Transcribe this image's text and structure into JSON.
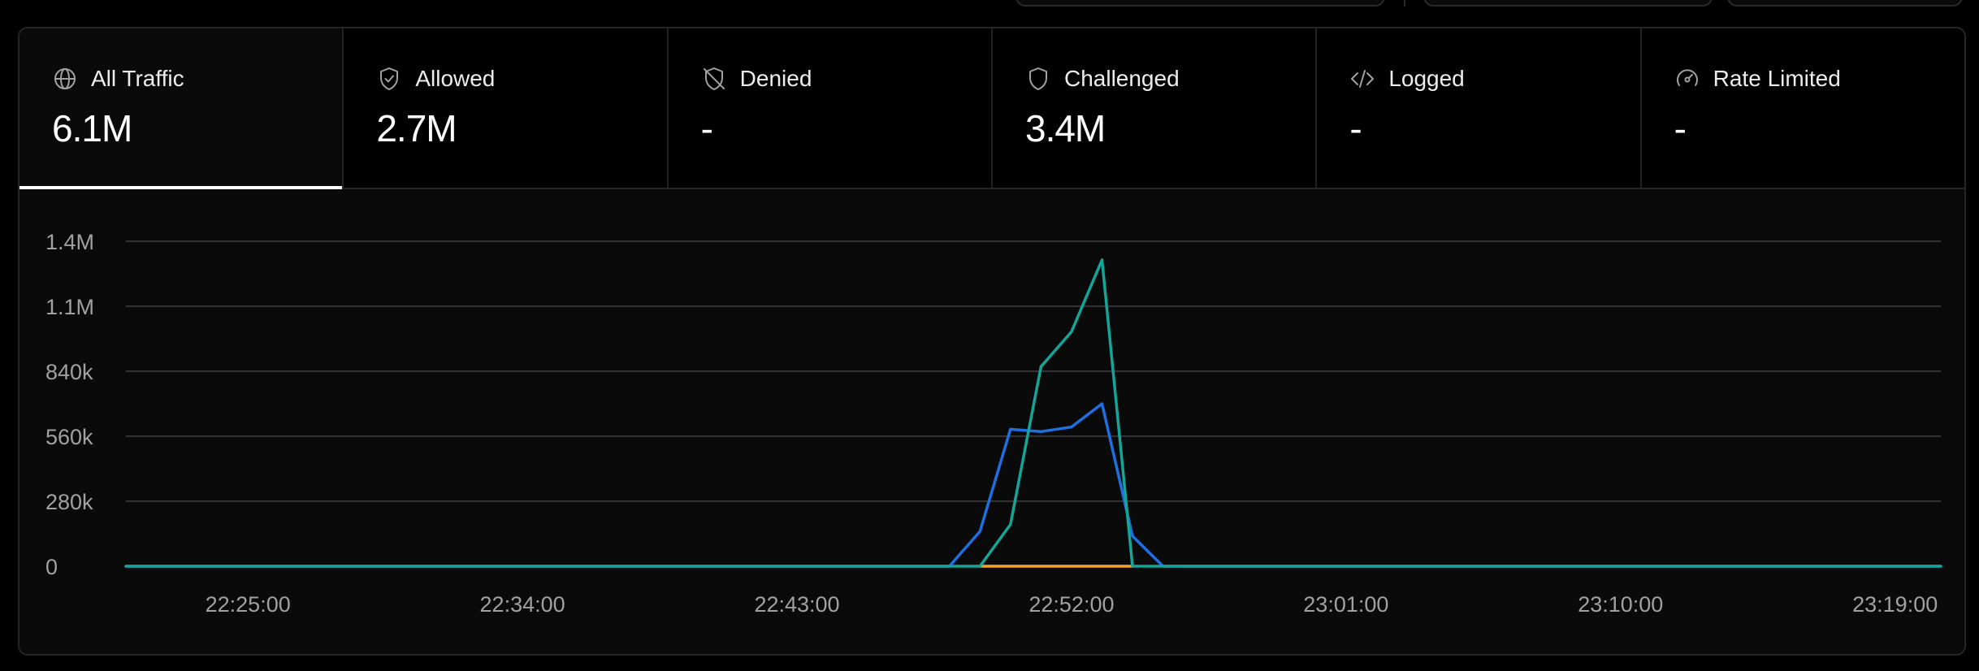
{
  "tabs": [
    {
      "label": "All Traffic",
      "value": "6.1M",
      "icon": "globe-icon",
      "active": true
    },
    {
      "label": "Allowed",
      "value": "2.7M",
      "icon": "shield-check-icon",
      "active": false
    },
    {
      "label": "Denied",
      "value": "-",
      "icon": "shield-off-icon",
      "active": false
    },
    {
      "label": "Challenged",
      "value": "3.4M",
      "icon": "shield-icon",
      "active": false
    },
    {
      "label": "Logged",
      "value": "-",
      "icon": "code-icon",
      "active": false
    },
    {
      "label": "Rate Limited",
      "value": "-",
      "icon": "gauge-icon",
      "active": false
    }
  ],
  "chart_data": {
    "type": "line",
    "y_ticks": [
      "0",
      "280k",
      "560k",
      "840k",
      "1.1M",
      "1.4M"
    ],
    "y_tick_values": [
      0,
      280000,
      560000,
      840000,
      1120000,
      1400000
    ],
    "ylim": [
      0,
      1400000
    ],
    "x_tick_labels": [
      "22:25:00",
      "22:34:00",
      "22:43:00",
      "22:52:00",
      "23:01:00",
      "23:10:00",
      "23:19:00"
    ],
    "x_tick_minutes": [
      25,
      34,
      43,
      52,
      61,
      70,
      79
    ],
    "xlim": [
      21,
      80.5
    ],
    "grid": true,
    "legend": "none",
    "series": [
      {
        "color": "#1f6fe0",
        "points": [
          [
            21,
            0
          ],
          [
            48,
            0
          ],
          [
            49,
            150000
          ],
          [
            50,
            590000
          ],
          [
            51,
            580000
          ],
          [
            52,
            600000
          ],
          [
            53,
            700000
          ],
          [
            54,
            130000
          ],
          [
            55,
            0
          ],
          [
            80.5,
            0
          ]
        ]
      },
      {
        "color": "#f5a524",
        "points": [
          [
            49,
            0
          ],
          [
            54,
            0
          ]
        ]
      },
      {
        "color": "#13a597",
        "points": [
          [
            21,
            0
          ],
          [
            49,
            0
          ],
          [
            50,
            180000
          ],
          [
            51,
            860000
          ],
          [
            52,
            1010000
          ],
          [
            53,
            1320000
          ],
          [
            54,
            0
          ],
          [
            80.5,
            0
          ]
        ]
      }
    ]
  },
  "colors": {
    "background": "#000000",
    "panel": "#0a0a0a",
    "grid": "#333333",
    "tick_text": "#a1a1a1"
  }
}
